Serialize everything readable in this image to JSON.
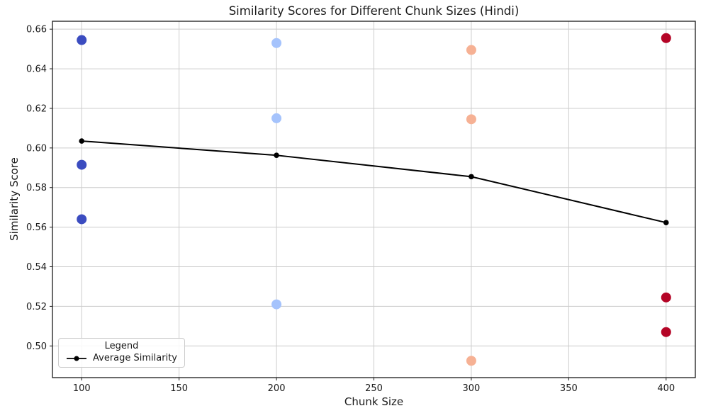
{
  "chart_data": {
    "type": "scatter",
    "title": "Similarity Scores for Different Chunk Sizes (Hindi)",
    "xlabel": "Chunk Size",
    "ylabel": "Similarity Score",
    "xlim": [
      85,
      415
    ],
    "ylim": [
      0.484,
      0.664
    ],
    "x_ticks": [
      100,
      150,
      200,
      250,
      300,
      350,
      400
    ],
    "y_ticks": [
      0.5,
      0.52,
      0.54,
      0.56,
      0.58,
      0.6,
      0.62,
      0.64,
      0.66
    ],
    "grid": true,
    "legend": {
      "title": "Legend",
      "position": "lower left",
      "items": [
        {
          "label": "Average Similarity",
          "marker": "line-dot",
          "color": "#000000"
        }
      ]
    },
    "scatter_groups": [
      {
        "chunk_size": 100,
        "color": "#3b4cc0",
        "scores": [
          0.6545,
          0.5915,
          0.564
        ]
      },
      {
        "chunk_size": 200,
        "color": "#a5c3fc",
        "scores": [
          0.653,
          0.615,
          0.521
        ]
      },
      {
        "chunk_size": 300,
        "color": "#f6b194",
        "scores": [
          0.6495,
          0.6145,
          0.4925
        ]
      },
      {
        "chunk_size": 400,
        "color": "#b40426",
        "scores": [
          0.6555,
          0.5245,
          0.507
        ]
      }
    ],
    "average_line": {
      "name": "Average Similarity",
      "color": "#000000",
      "x": [
        100,
        200,
        300,
        400
      ],
      "y": [
        0.6035,
        0.5963,
        0.5855,
        0.5623
      ]
    },
    "styles": {
      "grid_color": "#cccccc",
      "spine_color": "#1a1a1a",
      "tick_label_color": "#1a1a1a",
      "scatter_radius": 7,
      "line_marker_radius": 3.8,
      "line_width": 2
    }
  }
}
